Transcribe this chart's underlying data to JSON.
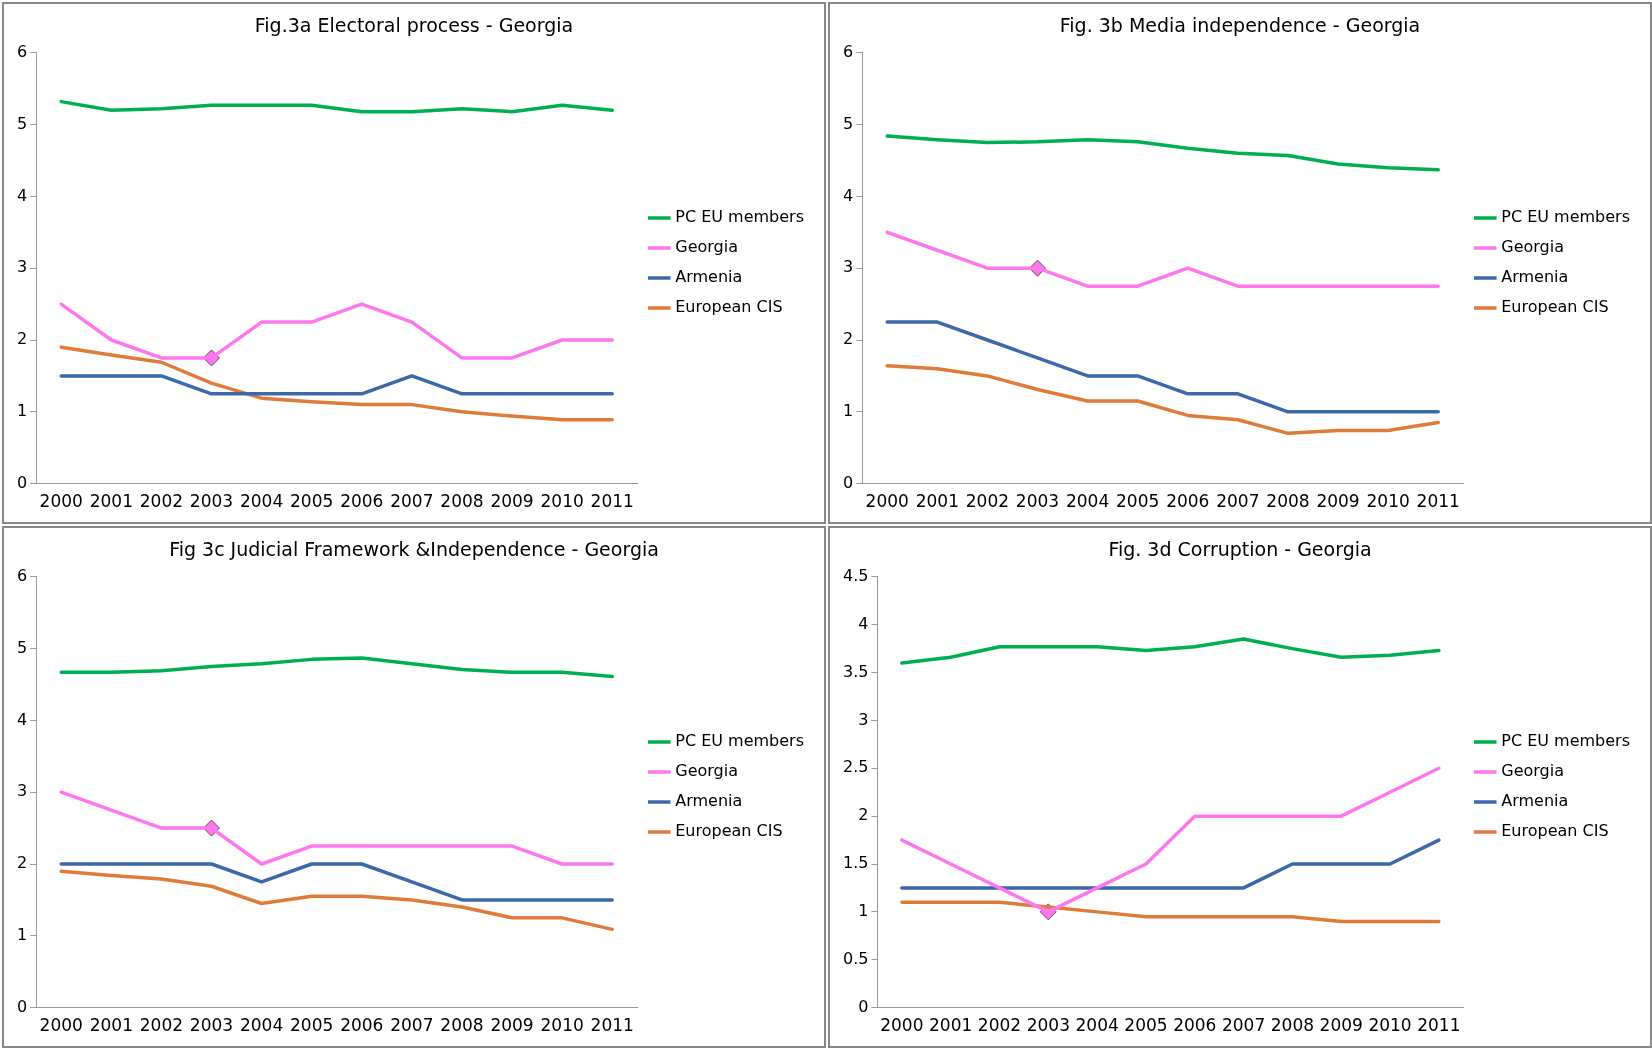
{
  "chart_data": [
    {
      "type": "line",
      "title": "Fig.3a Electoral process - Georgia",
      "categories": [
        "2000",
        "2001",
        "2002",
        "2003",
        "2004",
        "2005",
        "2006",
        "2007",
        "2008",
        "2009",
        "2010",
        "2011"
      ],
      "ylim": [
        0,
        6
      ],
      "yticks": [
        0,
        1,
        2,
        3,
        4,
        5,
        6
      ],
      "grid": false,
      "legend": "right",
      "series": [
        {
          "name": "PC EU members",
          "color": "#00b050",
          "values": [
            5.32,
            5.2,
            5.22,
            5.27,
            5.27,
            5.27,
            5.18,
            5.18,
            5.22,
            5.18,
            5.27,
            5.2
          ]
        },
        {
          "name": "Georgia",
          "color": "#ff77ee",
          "values": [
            2.5,
            2.0,
            1.75,
            1.75,
            2.25,
            2.25,
            2.5,
            2.25,
            1.75,
            1.75,
            2.0,
            2.0
          ]
        },
        {
          "name": "Armenia",
          "color": "#3c6aa8",
          "values": [
            1.5,
            1.5,
            1.5,
            1.25,
            1.25,
            1.25,
            1.25,
            1.5,
            1.25,
            1.25,
            1.25,
            1.25
          ]
        },
        {
          "name": "European CIS",
          "color": "#e07b39",
          "values": [
            1.9,
            1.79,
            1.69,
            1.4,
            1.19,
            1.14,
            1.1,
            1.1,
            1.0,
            0.94,
            0.89,
            0.89
          ]
        },
        {
          "type": "scatter",
          "marker": "diamond",
          "color": "#ff77ee",
          "values": [
            null,
            null,
            null,
            1.75,
            null,
            null,
            null,
            null,
            null,
            null,
            null,
            null
          ]
        }
      ]
    },
    {
      "type": "line",
      "title": "Fig. 3b Media independence - Georgia",
      "categories": [
        "2000",
        "2001",
        "2002",
        "2003",
        "2004",
        "2005",
        "2006",
        "2007",
        "2008",
        "2009",
        "2010",
        "2011"
      ],
      "ylim": [
        0,
        6
      ],
      "yticks": [
        0,
        1,
        2,
        3,
        4,
        5,
        6
      ],
      "grid": false,
      "legend": "right",
      "series": [
        {
          "name": "PC EU members",
          "color": "#00b050",
          "values": [
            4.84,
            4.79,
            4.75,
            4.76,
            4.79,
            4.76,
            4.67,
            4.6,
            4.57,
            4.45,
            4.4,
            4.37
          ]
        },
        {
          "name": "Georgia",
          "color": "#ff77ee",
          "values": [
            3.5,
            3.25,
            3.0,
            3.0,
            2.75,
            2.75,
            3.0,
            2.75,
            2.75,
            2.75,
            2.75,
            2.75
          ]
        },
        {
          "name": "Armenia",
          "color": "#3c6aa8",
          "values": [
            2.25,
            2.25,
            2.0,
            1.75,
            1.5,
            1.5,
            1.25,
            1.25,
            1.0,
            1.0,
            1.0,
            1.0
          ]
        },
        {
          "name": "European CIS",
          "color": "#e07b39",
          "values": [
            1.64,
            1.6,
            1.5,
            1.31,
            1.15,
            1.15,
            0.95,
            0.89,
            0.7,
            0.74,
            0.74,
            0.85
          ]
        },
        {
          "type": "scatter",
          "marker": "diamond",
          "color": "#ff77ee",
          "values": [
            null,
            null,
            null,
            3.0,
            null,
            null,
            null,
            null,
            null,
            null,
            null,
            null
          ]
        }
      ]
    },
    {
      "type": "line",
      "title": "Fig 3c Judicial Framework &Independence - Georgia",
      "categories": [
        "2000",
        "2001",
        "2002",
        "2003",
        "2004",
        "2005",
        "2006",
        "2007",
        "2008",
        "2009",
        "2010",
        "2011"
      ],
      "ylim": [
        0,
        6
      ],
      "yticks": [
        0,
        1,
        2,
        3,
        4,
        5,
        6
      ],
      "grid": false,
      "legend": "right",
      "series": [
        {
          "name": "PC EU members",
          "color": "#00b050",
          "values": [
            4.67,
            4.67,
            4.69,
            4.75,
            4.79,
            4.85,
            4.87,
            4.79,
            4.71,
            4.67,
            4.67,
            4.61
          ]
        },
        {
          "name": "Georgia",
          "color": "#ff77ee",
          "values": [
            3.0,
            2.75,
            2.5,
            2.5,
            2.0,
            2.25,
            2.25,
            2.25,
            2.25,
            2.25,
            2.0,
            2.0
          ]
        },
        {
          "name": "Armenia",
          "color": "#3c6aa8",
          "values": [
            2.0,
            2.0,
            2.0,
            2.0,
            1.75,
            2.0,
            2.0,
            1.75,
            1.5,
            1.5,
            1.5,
            1.5
          ]
        },
        {
          "name": "European CIS",
          "color": "#e07b39",
          "values": [
            1.9,
            1.84,
            1.79,
            1.69,
            1.45,
            1.55,
            1.55,
            1.5,
            1.4,
            1.25,
            1.25,
            1.09
          ]
        },
        {
          "type": "scatter",
          "marker": "diamond",
          "color": "#ff77ee",
          "values": [
            null,
            null,
            null,
            2.5,
            null,
            null,
            null,
            null,
            null,
            null,
            null,
            null
          ]
        }
      ]
    },
    {
      "type": "line",
      "title": "Fig. 3d Corruption - Georgia",
      "categories": [
        "2000",
        "2001",
        "2002",
        "2003",
        "2004",
        "2005",
        "2006",
        "2007",
        "2008",
        "2009",
        "2010",
        "2011"
      ],
      "ylim": [
        0,
        4.5
      ],
      "yticks": [
        0,
        0.5,
        1,
        1.5,
        2,
        2.5,
        3,
        3.5,
        4,
        4.5
      ],
      "grid": false,
      "legend": "right",
      "series": [
        {
          "name": "PC EU members",
          "color": "#00b050",
          "values": [
            3.6,
            3.66,
            3.77,
            3.77,
            3.77,
            3.73,
            3.77,
            3.85,
            3.75,
            3.66,
            3.68,
            3.73
          ]
        },
        {
          "name": "Georgia",
          "color": "#ff77ee",
          "values": [
            1.75,
            1.5,
            1.25,
            1.0,
            1.25,
            1.5,
            2.0,
            2.0,
            2.0,
            2.0,
            2.25,
            2.5
          ]
        },
        {
          "name": "Armenia",
          "color": "#3c6aa8",
          "values": [
            1.25,
            1.25,
            1.25,
            1.25,
            1.25,
            1.25,
            1.25,
            1.25,
            1.5,
            1.5,
            1.5,
            1.75
          ]
        },
        {
          "name": "European CIS",
          "color": "#e07b39",
          "values": [
            1.1,
            1.1,
            1.1,
            1.05,
            1.0,
            0.95,
            0.95,
            0.95,
            0.95,
            0.9,
            0.9,
            0.9
          ]
        },
        {
          "type": "scatter",
          "marker": "diamond",
          "color": "#ff77ee",
          "values": [
            null,
            null,
            null,
            1.0,
            null,
            null,
            null,
            null,
            null,
            null,
            null,
            null
          ]
        }
      ]
    }
  ]
}
